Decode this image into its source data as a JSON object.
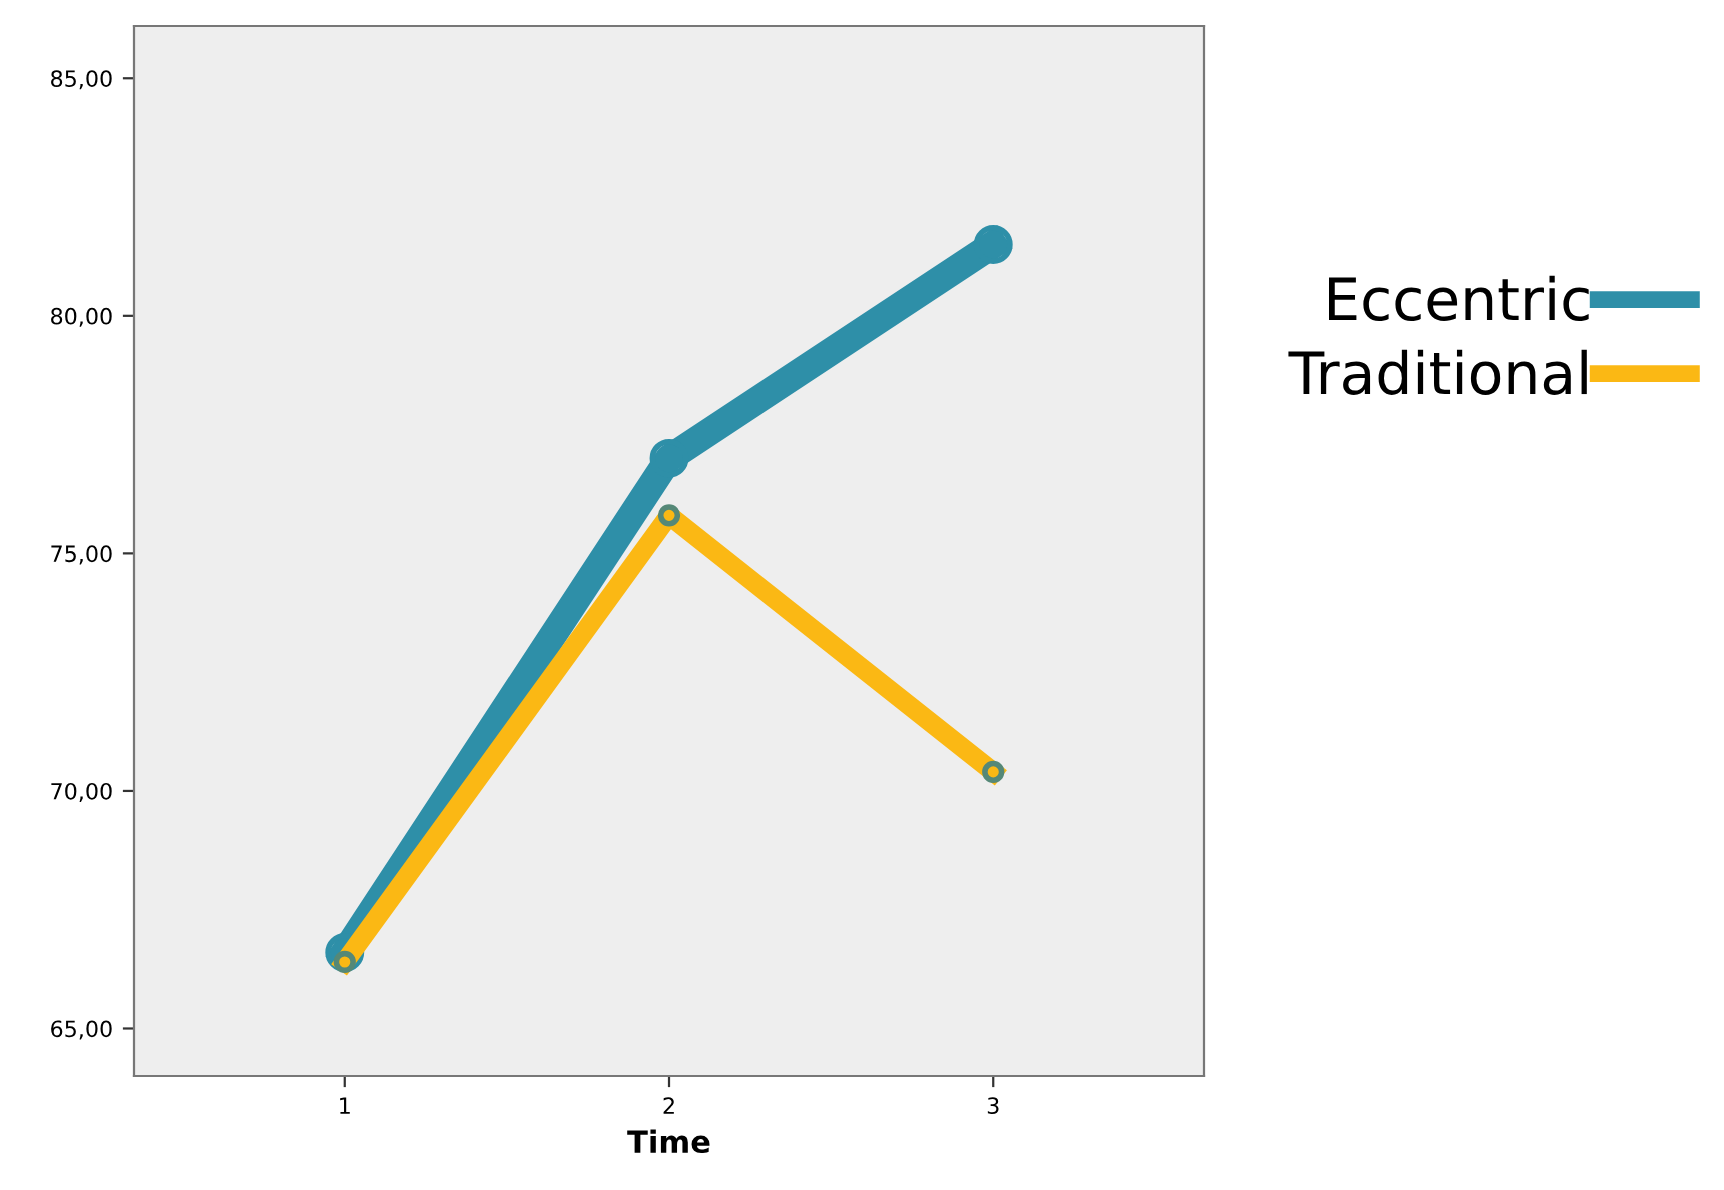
{
  "chart_data": {
    "type": "line",
    "xlabel": "Time",
    "x": [
      1,
      2,
      3
    ],
    "series": [
      {
        "name": "Eccentric",
        "color": "#2e8fa8",
        "values": [
          66.6,
          77.0,
          81.5
        ]
      },
      {
        "name": "Traditional",
        "color": "#fbb814",
        "values": [
          66.4,
          75.8,
          70.4
        ]
      }
    ],
    "xlim": [
      0.35,
      3.65
    ],
    "xticks": [
      1,
      2,
      3
    ],
    "ylim": [
      64.0,
      86.1
    ],
    "yticks": [
      {
        "value": 65,
        "label": "65,00"
      },
      {
        "value": 70,
        "label": "70,00"
      },
      {
        "value": 75,
        "label": "75,00"
      },
      {
        "value": 80,
        "label": "80,00"
      },
      {
        "value": 85,
        "label": "85,00"
      }
    ],
    "grid": false,
    "legend": "right",
    "marker": "circle",
    "line_style": "solid"
  }
}
